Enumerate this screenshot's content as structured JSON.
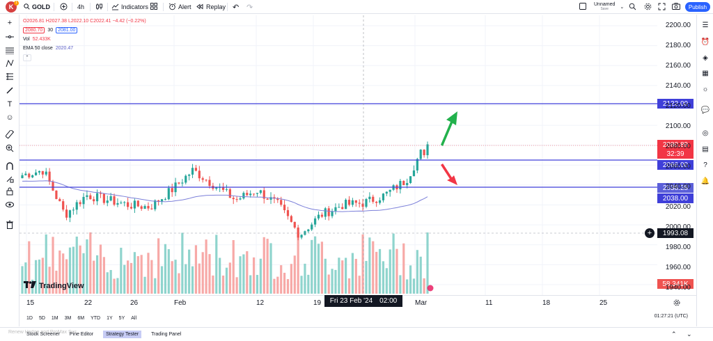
{
  "topbar": {
    "avatar": "K",
    "badge": "1",
    "symbol": "GOLD",
    "interval": "4h",
    "indicators": "Indicators",
    "alert": "Alert",
    "replay": "Replay",
    "layout_name": "Unnamed",
    "layout_sub": "Save",
    "publish": "Publish"
  },
  "legend": {
    "ohlc": "O2026.81 H2027.38 L2022.10 C2022.41 −4.42 (−0.22%)",
    "sell_price": "2080.70",
    "spread": "30",
    "buy_price": "2081.00",
    "vol_label": "Vol",
    "vol_value": "52.433K",
    "ema_label": "EMA 50 close",
    "ema_value": "2020.47"
  },
  "price_axis": {
    "ticks": [
      "2200.00",
      "2180.00",
      "2160.00",
      "2140.00",
      "2120.00",
      "2100.00",
      "2080.00",
      "2060.00",
      "2040.00",
      "2020.00",
      "2000.00",
      "1980.00",
      "1960.00",
      "1940.00"
    ],
    "tags": {
      "line_2122": "2122.00",
      "last_price": "2080.89",
      "countdown": "32:39",
      "line_2066": "2066.00",
      "ema_tag": "2038.28",
      "line_2038": "2038.00",
      "cursor_price": "1993.08",
      "volume_tag": "58.341K"
    }
  },
  "date_axis": {
    "labels": [
      "15",
      "22",
      "26",
      "Feb",
      "12",
      "19",
      "Mar",
      "11",
      "18",
      "25"
    ],
    "cursor_date": "Fri 23 Feb '24",
    "cursor_time": "02:00"
  },
  "ranges": [
    "1D",
    "5D",
    "1M",
    "3M",
    "6M",
    "YTD",
    "1Y",
    "5Y",
    "All"
  ],
  "clock": "01:27:21 (UTC)",
  "bottom_tabs": [
    "Stock Screener",
    "Pine Editor",
    "Strategy Tester",
    "Trading Panel"
  ],
  "watermark": "Renew Hedge and ProMax Sus...",
  "brand": "TradingView",
  "colors": {
    "up": "#26a69a",
    "down": "#ef5350",
    "level_line": "#3f3fd9",
    "ema": "#7b7fd9",
    "arrow_up": "#22b14c",
    "arrow_down": "#f23645",
    "accent": "#2962ff"
  },
  "chart_data": {
    "type": "candlestick",
    "symbol": "GOLD",
    "interval": "4h",
    "y_range": [
      1930,
      2210
    ],
    "levels": [
      2122.0,
      2066.0,
      2038.0
    ],
    "approx_close_path": [
      {
        "x": "Jan 12",
        "y": 2050
      },
      {
        "x": "Jan 15",
        "y": 2055
      },
      {
        "x": "Jan 17",
        "y": 2010
      },
      {
        "x": "Jan 19",
        "y": 2030
      },
      {
        "x": "Jan 22",
        "y": 2025
      },
      {
        "x": "Jan 24",
        "y": 2020
      },
      {
        "x": "Jan 26",
        "y": 2018
      },
      {
        "x": "Jan 29",
        "y": 2035
      },
      {
        "x": "Feb 1",
        "y": 2055
      },
      {
        "x": "Feb 2",
        "y": 2040
      },
      {
        "x": "Feb 5",
        "y": 2025
      },
      {
        "x": "Feb 8",
        "y": 2035
      },
      {
        "x": "Feb 12",
        "y": 2020
      },
      {
        "x": "Feb 14",
        "y": 1990
      },
      {
        "x": "Feb 16",
        "y": 2010
      },
      {
        "x": "Feb 19",
        "y": 2020
      },
      {
        "x": "Feb 22",
        "y": 2022
      },
      {
        "x": "Feb 26",
        "y": 2030
      },
      {
        "x": "Feb 29",
        "y": 2045
      },
      {
        "x": "Mar 1",
        "y": 2085
      }
    ],
    "last_price": 2080.89,
    "volume_last": "58.341K"
  }
}
